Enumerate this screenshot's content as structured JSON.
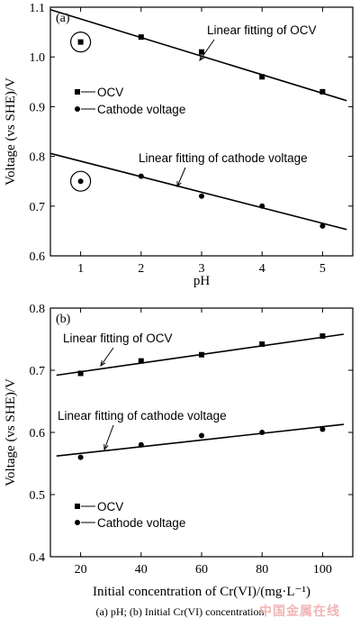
{
  "caption": "(a) pH; (b) Initial  Cr(VI) concentration",
  "watermark": "中国金属在线",
  "chart_data": [
    {
      "type": "scatter",
      "panel_label": "(a)",
      "xlabel": "pH",
      "ylabel": "Voltage (vs SHE)/V",
      "xlim": [
        0.5,
        5.5
      ],
      "ylim": [
        0.6,
        1.1
      ],
      "xticks": [
        1,
        2,
        3,
        4,
        5
      ],
      "yticks": [
        0.6,
        0.7,
        0.8,
        0.9,
        1.0,
        1.1
      ],
      "ytick_labels": [
        "0.6",
        "0.7",
        "0.8",
        "0.9",
        "1.0",
        "1.1"
      ],
      "x": [
        1,
        2,
        3,
        4,
        5
      ],
      "series": [
        {
          "name": "OCV",
          "marker": "square",
          "values": [
            1.03,
            1.04,
            1.01,
            0.96,
            0.93
          ]
        },
        {
          "name": "Cathode voltage",
          "marker": "circle",
          "values": [
            0.75,
            0.76,
            0.72,
            0.7,
            0.66
          ]
        }
      ],
      "fits": [
        {
          "label": "Linear fitting of OCV",
          "x": [
            0.5,
            5.4
          ],
          "y": [
            1.095,
            0.912
          ]
        },
        {
          "label": "Linear fitting of cathode voltage",
          "x": [
            0.5,
            5.4
          ],
          "y": [
            0.806,
            0.653
          ]
        }
      ],
      "circled_points": [
        {
          "series": 0,
          "index": 0
        },
        {
          "series": 1,
          "index": 0
        }
      ],
      "legend": "left"
    },
    {
      "type": "scatter",
      "panel_label": "(b)",
      "xlabel": "Initial concentration of Cr(VI)/(mg·L⁻¹)",
      "ylabel": "Voltage (vs SHE)/V",
      "xlim": [
        10,
        110
      ],
      "ylim": [
        0.4,
        0.8
      ],
      "xticks": [
        20,
        40,
        60,
        80,
        100
      ],
      "yticks": [
        0.4,
        0.5,
        0.6,
        0.7,
        0.8
      ],
      "ytick_labels": [
        "0.4",
        "0.5",
        "0.6",
        "0.7",
        "0.8"
      ],
      "x": [
        20,
        40,
        60,
        80,
        100
      ],
      "series": [
        {
          "name": "OCV",
          "marker": "square",
          "values": [
            0.695,
            0.715,
            0.725,
            0.742,
            0.755
          ]
        },
        {
          "name": "Cathode voltage",
          "marker": "circle",
          "values": [
            0.56,
            0.58,
            0.595,
            0.6,
            0.605
          ]
        }
      ],
      "fits": [
        {
          "label": "Linear fitting of OCV",
          "x": [
            12,
            107
          ],
          "y": [
            0.692,
            0.758
          ]
        },
        {
          "label": "Linear fitting of cathode voltage",
          "x": [
            12,
            107
          ],
          "y": [
            0.562,
            0.613
          ]
        }
      ],
      "circled_points": [],
      "legend": "bottom-left"
    }
  ]
}
